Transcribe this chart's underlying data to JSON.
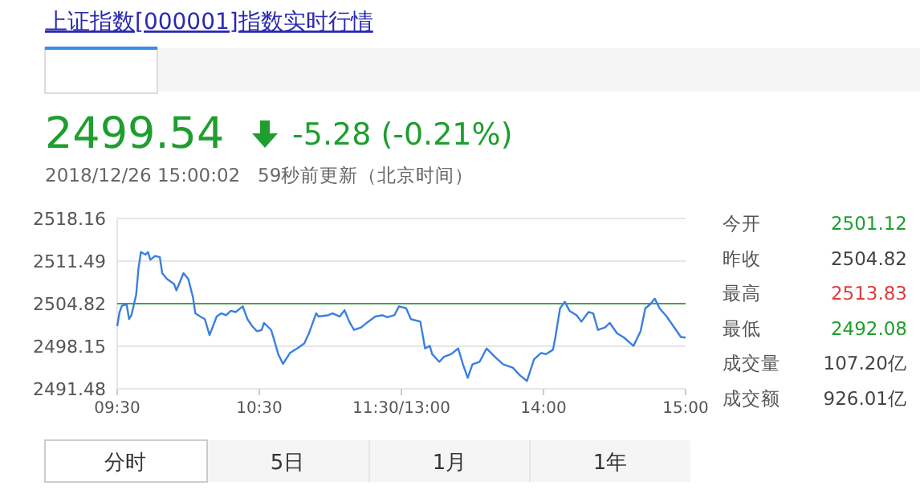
{
  "chart_data": {
    "type": "line",
    "title": "上证指数[000001]指数实时行情",
    "categories": [
      "09:30",
      null,
      null,
      null,
      null,
      null,
      null,
      null,
      null,
      null,
      null,
      null,
      null,
      null,
      null,
      null,
      null,
      null,
      null,
      null,
      null,
      null,
      null,
      null,
      null,
      null,
      null,
      null,
      null,
      null,
      null,
      null,
      null,
      null,
      null,
      null,
      null,
      null,
      null,
      null,
      null,
      null,
      null,
      null,
      null,
      null,
      null,
      null,
      null,
      null,
      null,
      null,
      null,
      null,
      null,
      null,
      null,
      null,
      null,
      null,
      "10:30",
      null,
      null,
      null,
      null,
      null,
      null,
      null,
      null,
      null,
      null,
      null,
      null,
      null,
      null,
      null,
      null,
      null,
      null,
      null,
      null,
      null,
      null,
      null,
      null,
      null,
      null,
      null,
      null,
      null,
      null,
      null,
      null,
      null,
      null,
      null,
      null,
      null,
      null,
      null,
      null,
      null,
      null,
      null,
      null,
      null,
      null,
      null,
      null,
      null,
      null,
      null,
      null,
      null,
      null,
      null,
      null,
      null,
      null,
      null,
      "11:30/13:00",
      null,
      null,
      null,
      null,
      null,
      null,
      null,
      null,
      null,
      null,
      null,
      null,
      null,
      null,
      null,
      null,
      null,
      null,
      null,
      null,
      null,
      null,
      null,
      null,
      null,
      null,
      null,
      null,
      null,
      null,
      null,
      null,
      null,
      null,
      null,
      null,
      null,
      null,
      null,
      null,
      null,
      null,
      null,
      null,
      null,
      null,
      null,
      null,
      null,
      null,
      null,
      null,
      null,
      null,
      null,
      null,
      null,
      null,
      null,
      "14:00",
      null,
      null,
      null,
      null,
      null,
      null,
      null,
      null,
      null,
      null,
      null,
      null,
      null,
      null,
      null,
      null,
      null,
      null,
      null,
      null,
      null,
      null,
      null,
      null,
      null,
      null,
      null,
      null,
      null,
      null,
      null,
      null,
      null,
      null,
      null,
      null,
      null,
      null,
      null,
      null,
      null,
      null,
      null,
      null,
      null,
      null,
      null,
      null,
      null,
      null,
      null,
      null,
      null,
      null,
      null,
      null,
      null,
      null,
      null,
      "15:00"
    ],
    "series": [
      {
        "color": "#3a7fe0",
        "values": [
          2501.3,
          2503.5,
          2504.5,
          null,
          2504.7,
          2502.4,
          2503.0,
          null,
          2506.2,
          2510.4,
          2512.9,
          null,
          2512.5,
          2512.9,
          2511.7,
          null,
          2512.3,
          null,
          2512.1,
          2509.6,
          null,
          2508.7,
          null,
          null,
          2507.9,
          2506.9,
          null,
          null,
          2509.6,
          null,
          2508.7,
          null,
          2505.8,
          2503.3,
          null,
          2502.8,
          null,
          2502.4,
          null,
          2499.9,
          null,
          null,
          2502.8,
          null,
          2503.3,
          null,
          2503.0,
          null,
          2503.7,
          null,
          2503.5,
          null,
          null,
          2504.4,
          null,
          2502.4,
          null,
          2501.3,
          null,
          2500.5,
          null,
          2500.7,
          2501.8,
          null,
          null,
          2500.7,
          2499.5,
          null,
          2496.9,
          null,
          2495.4,
          null,
          null,
          2497.1,
          null,
          null,
          2497.8,
          null,
          null,
          2498.6,
          null,
          2500.2,
          null,
          null,
          2503.3,
          2502.8,
          null,
          null,
          null,
          2503.0,
          null,
          2503.3,
          null,
          null,
          2502.8,
          null,
          2503.8,
          null,
          2502.0,
          null,
          2500.7,
          null,
          null,
          2501.1,
          null,
          null,
          2502.0,
          null,
          null,
          2502.8,
          null,
          null,
          2503.0,
          null,
          2502.7,
          null,
          null,
          2503.0,
          null,
          2504.4,
          null,
          null,
          2504.1,
          null,
          2502.4,
          null,
          null,
          null,
          2502.0,
          null,
          2497.8,
          null,
          2498.2,
          2496.9,
          null,
          null,
          2495.7,
          null,
          2496.5,
          null,
          null,
          2496.9,
          null,
          null,
          2497.8,
          null,
          2495.3,
          null,
          2493.2,
          null,
          2495.3,
          null,
          null,
          2495.7,
          null,
          null,
          2497.8,
          null,
          null,
          null,
          2496.3,
          null,
          null,
          2495.3,
          null,
          null,
          null,
          2494.8,
          null,
          null,
          2493.6,
          null,
          null,
          2492.7,
          null,
          null,
          2496.1,
          null,
          null,
          2497.1,
          null,
          2496.9,
          null,
          null,
          2497.6,
          2499.5,
          null,
          2504.1,
          null,
          2505.1,
          null,
          2503.7,
          null,
          null,
          2503.0,
          null,
          2502.0,
          null,
          null,
          2503.5,
          null,
          2503.3,
          null,
          2500.7,
          null,
          null,
          2501.1,
          null,
          2501.8,
          null,
          null,
          2500.2,
          null,
          null,
          2499.5,
          null,
          null,
          null,
          2498.2,
          null,
          null,
          2500.5,
          null,
          2504.1,
          null,
          2504.7,
          null,
          2505.6,
          null,
          2504.1,
          null,
          null,
          2502.8,
          null,
          null,
          2501.2,
          null,
          null,
          2499.6,
          null,
          2499.5
        ]
      }
    ],
    "ylim": [
      2491.48,
      2518.16
    ],
    "yticks": [
      2491.48,
      2498.15,
      2504.82,
      2511.49,
      2518.16
    ],
    "grid": "y",
    "ref_lines": [
      {
        "axis": "y",
        "value": 2504.82,
        "color": "#4aa04a"
      }
    ],
    "annotations": [
      "2499.54",
      "-5.28 (-0.21%)",
      "2018/12/26 15:00:02   59秒前更新（北京时间）",
      "今开",
      "2501.12",
      "昨收",
      "2504.82",
      "最高",
      "2513.83",
      "最低",
      "2492.08",
      "成交量",
      "107.20亿",
      "成交额",
      "926.01亿",
      "分时",
      "5日",
      "1月",
      "1年"
    ]
  }
}
